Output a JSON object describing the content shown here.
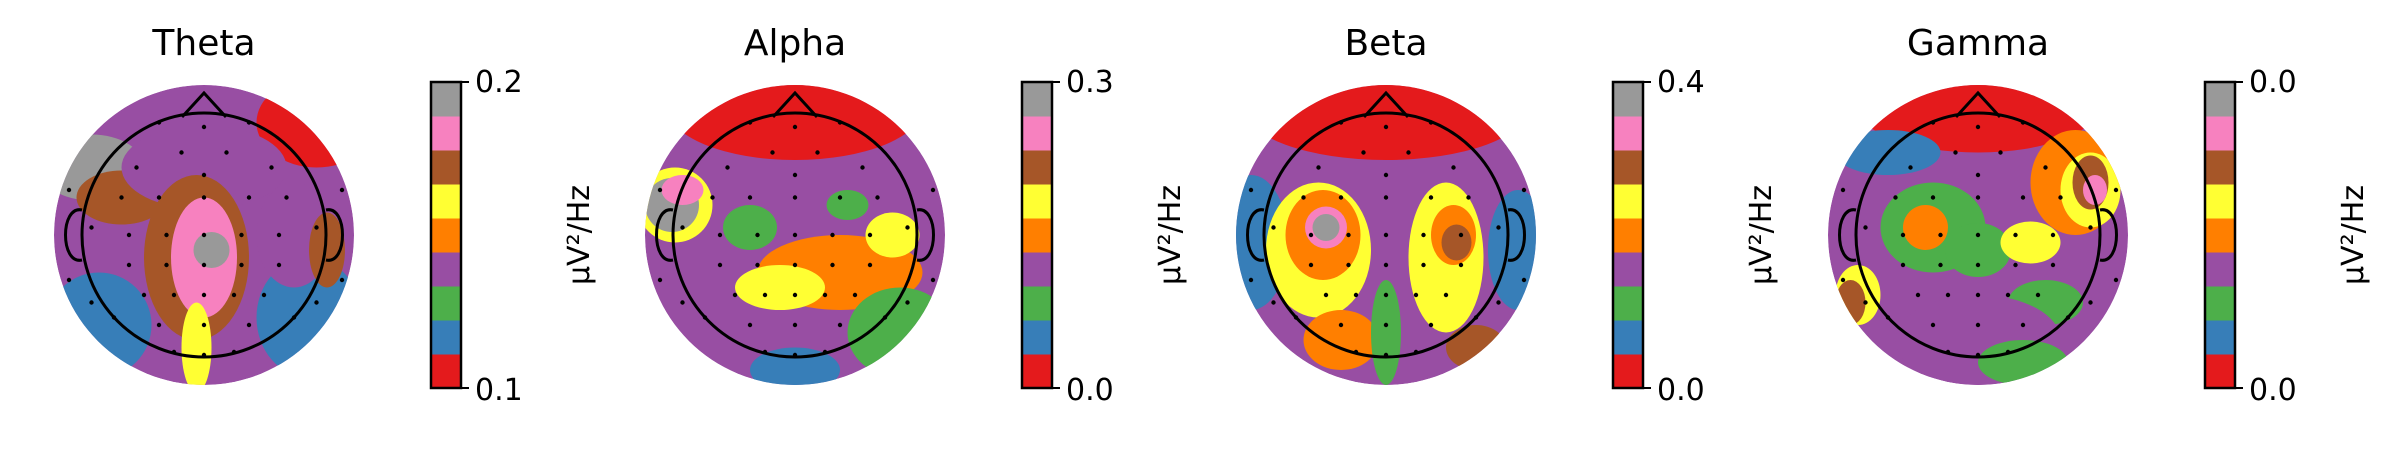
{
  "chart_data": {
    "type": "heatmap",
    "colormap": [
      "#e41a1c",
      "#377eb8",
      "#4daf4a",
      "#984ea3",
      "#ff7f00",
      "#ffff33",
      "#a65628",
      "#f781bf",
      "#999999"
    ],
    "panels": [
      {
        "title": "Theta",
        "colorbar": {
          "min": "0.1",
          "max": "0.2",
          "label": "µV²/Hz"
        },
        "blobs": [
          {
            "cx": -0.75,
            "cy": -0.45,
            "rx": 0.35,
            "ry": 0.22,
            "level": 8
          },
          {
            "cx": -0.55,
            "cy": -0.25,
            "rx": 0.3,
            "ry": 0.18,
            "level": 6
          },
          {
            "cx": 0.75,
            "cy": -0.75,
            "rx": 0.4,
            "ry": 0.3,
            "level": 0
          },
          {
            "cx": 0.0,
            "cy": -0.45,
            "rx": 0.55,
            "ry": 0.28,
            "level": 3
          },
          {
            "cx": -0.05,
            "cy": 0.15,
            "rx": 0.35,
            "ry": 0.55,
            "level": 6
          },
          {
            "cx": 0.0,
            "cy": 0.15,
            "rx": 0.22,
            "ry": 0.4,
            "level": 7
          },
          {
            "cx": 0.05,
            "cy": 0.1,
            "rx": 0.12,
            "ry": 0.12,
            "level": 8
          },
          {
            "cx": -0.05,
            "cy": 0.75,
            "rx": 0.1,
            "ry": 0.3,
            "level": 5
          },
          {
            "cx": -0.7,
            "cy": 0.6,
            "rx": 0.35,
            "ry": 0.35,
            "level": 1
          },
          {
            "cx": 0.7,
            "cy": 0.55,
            "rx": 0.35,
            "ry": 0.4,
            "level": 1
          },
          {
            "cx": 0.6,
            "cy": 0.0,
            "rx": 0.25,
            "ry": 0.35,
            "level": 3
          },
          {
            "cx": 0.82,
            "cy": 0.1,
            "rx": 0.12,
            "ry": 0.25,
            "level": 6
          }
        ]
      },
      {
        "title": "Alpha",
        "colorbar": {
          "min": "0.0",
          "max": "0.3",
          "label": "µV²/Hz"
        },
        "blobs": [
          {
            "cx": 0.0,
            "cy": -0.85,
            "rx": 0.85,
            "ry": 0.35,
            "level": 0
          },
          {
            "cx": -0.8,
            "cy": -0.2,
            "rx": 0.25,
            "ry": 0.25,
            "level": 5
          },
          {
            "cx": -0.82,
            "cy": -0.2,
            "rx": 0.18,
            "ry": 0.18,
            "level": 8
          },
          {
            "cx": -0.75,
            "cy": -0.3,
            "rx": 0.14,
            "ry": 0.1,
            "level": 7
          },
          {
            "cx": -0.3,
            "cy": -0.05,
            "rx": 0.18,
            "ry": 0.15,
            "level": 2
          },
          {
            "cx": 0.3,
            "cy": 0.25,
            "rx": 0.55,
            "ry": 0.25,
            "level": 4
          },
          {
            "cx": -0.1,
            "cy": 0.35,
            "rx": 0.3,
            "ry": 0.15,
            "level": 5
          },
          {
            "cx": 0.65,
            "cy": 0.0,
            "rx": 0.18,
            "ry": 0.15,
            "level": 5
          },
          {
            "cx": 0.35,
            "cy": -0.2,
            "rx": 0.14,
            "ry": 0.1,
            "level": 2
          },
          {
            "cx": 0.7,
            "cy": 0.65,
            "rx": 0.35,
            "ry": 0.3,
            "level": 2
          },
          {
            "cx": 0.0,
            "cy": 0.9,
            "rx": 0.3,
            "ry": 0.15,
            "level": 1
          }
        ]
      },
      {
        "title": "Beta",
        "colorbar": {
          "min": "0.0",
          "max": "0.4",
          "label": "µV²/Hz"
        },
        "blobs": [
          {
            "cx": 0.0,
            "cy": -0.85,
            "rx": 0.95,
            "ry": 0.35,
            "level": 0
          },
          {
            "cx": -0.9,
            "cy": 0.05,
            "rx": 0.25,
            "ry": 0.45,
            "level": 1
          },
          {
            "cx": 0.88,
            "cy": 0.1,
            "rx": 0.2,
            "ry": 0.4,
            "level": 1
          },
          {
            "cx": -0.45,
            "cy": 0.1,
            "rx": 0.35,
            "ry": 0.45,
            "level": 5
          },
          {
            "cx": -0.42,
            "cy": 0.0,
            "rx": 0.25,
            "ry": 0.3,
            "level": 4
          },
          {
            "cx": -0.4,
            "cy": -0.05,
            "rx": 0.14,
            "ry": 0.14,
            "level": 7
          },
          {
            "cx": -0.4,
            "cy": -0.05,
            "rx": 0.09,
            "ry": 0.09,
            "level": 8
          },
          {
            "cx": 0.4,
            "cy": 0.15,
            "rx": 0.25,
            "ry": 0.5,
            "level": 5
          },
          {
            "cx": 0.45,
            "cy": 0.0,
            "rx": 0.15,
            "ry": 0.2,
            "level": 4
          },
          {
            "cx": 0.47,
            "cy": 0.05,
            "rx": 0.1,
            "ry": 0.12,
            "level": 6
          },
          {
            "cx": 0.6,
            "cy": 0.75,
            "rx": 0.2,
            "ry": 0.15,
            "level": 6
          },
          {
            "cx": -0.3,
            "cy": 0.7,
            "rx": 0.25,
            "ry": 0.2,
            "level": 4
          },
          {
            "cx": 0.0,
            "cy": 0.65,
            "rx": 0.1,
            "ry": 0.35,
            "level": 2
          }
        ]
      },
      {
        "title": "Gamma",
        "colorbar": {
          "min": "0.0",
          "max": "0.0",
          "label": "µV²/Hz"
        },
        "blobs": [
          {
            "cx": 0.0,
            "cy": -0.85,
            "rx": 0.8,
            "ry": 0.3,
            "level": 0
          },
          {
            "cx": -0.6,
            "cy": -0.55,
            "rx": 0.35,
            "ry": 0.15,
            "level": 1
          },
          {
            "cx": 0.65,
            "cy": -0.35,
            "rx": 0.3,
            "ry": 0.35,
            "level": 4
          },
          {
            "cx": 0.75,
            "cy": -0.3,
            "rx": 0.2,
            "ry": 0.25,
            "level": 5
          },
          {
            "cx": 0.75,
            "cy": -0.35,
            "rx": 0.12,
            "ry": 0.18,
            "level": 6
          },
          {
            "cx": 0.78,
            "cy": -0.3,
            "rx": 0.08,
            "ry": 0.1,
            "level": 7
          },
          {
            "cx": -0.3,
            "cy": -0.05,
            "rx": 0.35,
            "ry": 0.3,
            "level": 2
          },
          {
            "cx": -0.35,
            "cy": -0.05,
            "rx": 0.15,
            "ry": 0.15,
            "level": 4
          },
          {
            "cx": 0.0,
            "cy": 0.1,
            "rx": 0.22,
            "ry": 0.18,
            "level": 2
          },
          {
            "cx": 0.35,
            "cy": 0.05,
            "rx": 0.2,
            "ry": 0.14,
            "level": 5
          },
          {
            "cx": 0.45,
            "cy": 0.45,
            "rx": 0.25,
            "ry": 0.15,
            "level": 2
          },
          {
            "cx": -0.8,
            "cy": 0.4,
            "rx": 0.15,
            "ry": 0.2,
            "level": 5
          },
          {
            "cx": -0.85,
            "cy": 0.45,
            "rx": 0.1,
            "ry": 0.15,
            "level": 6
          },
          {
            "cx": 0.0,
            "cy": 0.7,
            "rx": 0.55,
            "ry": 0.3,
            "level": 3
          },
          {
            "cx": 0.3,
            "cy": 0.85,
            "rx": 0.3,
            "ry": 0.15,
            "level": 2
          }
        ]
      }
    ],
    "sensors": [
      [
        -0.9,
        -0.3
      ],
      [
        -0.75,
        -0.05
      ],
      [
        -0.9,
        0.3
      ],
      [
        0.92,
        -0.3
      ],
      [
        0.75,
        -0.05
      ],
      [
        0.92,
        0.3
      ],
      [
        -0.15,
        -0.55
      ],
      [
        0.15,
        -0.55
      ],
      [
        -0.45,
        -0.45
      ],
      [
        0.45,
        -0.45
      ],
      [
        0.0,
        -0.4
      ],
      [
        -0.55,
        -0.25
      ],
      [
        -0.3,
        -0.25
      ],
      [
        0.0,
        -0.25
      ],
      [
        0.3,
        -0.25
      ],
      [
        0.55,
        -0.25
      ],
      [
        -0.5,
        0.0
      ],
      [
        -0.25,
        0.0
      ],
      [
        0.0,
        0.0
      ],
      [
        0.25,
        0.0
      ],
      [
        0.5,
        0.0
      ],
      [
        -0.5,
        0.2
      ],
      [
        -0.25,
        0.2
      ],
      [
        0.0,
        0.2
      ],
      [
        0.25,
        0.2
      ],
      [
        0.5,
        0.2
      ],
      [
        -0.4,
        0.4
      ],
      [
        -0.2,
        0.4
      ],
      [
        0.0,
        0.4
      ],
      [
        0.2,
        0.4
      ],
      [
        0.4,
        0.4
      ],
      [
        -0.6,
        0.55
      ],
      [
        -0.3,
        0.6
      ],
      [
        0.0,
        0.6
      ],
      [
        0.3,
        0.6
      ],
      [
        0.6,
        0.55
      ],
      [
        -0.2,
        0.78
      ],
      [
        0.0,
        0.8
      ],
      [
        0.2,
        0.78
      ],
      [
        -0.75,
        0.45
      ],
      [
        0.75,
        0.45
      ],
      [
        -0.3,
        -0.75
      ],
      [
        0.3,
        -0.75
      ],
      [
        0.0,
        -0.72
      ]
    ]
  }
}
